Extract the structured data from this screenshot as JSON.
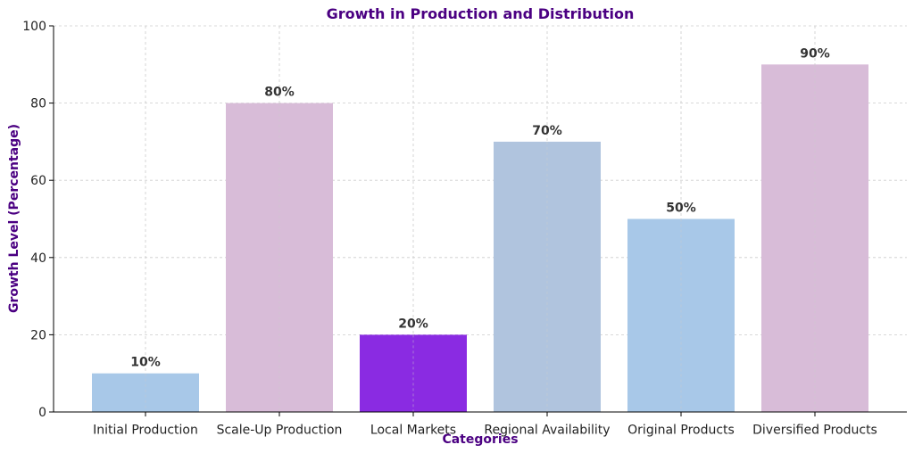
{
  "chart_data": {
    "type": "bar",
    "title": "Growth in Production and Distribution",
    "xlabel": "Categories",
    "ylabel": "Growth Level (Percentage)",
    "categories": [
      "Initial Production",
      "Scale-Up Production",
      "Local Markets",
      "Regional Availability",
      "Original Products",
      "Diversified Products"
    ],
    "values": [
      10,
      80,
      20,
      70,
      50,
      90
    ],
    "data_labels": [
      "10%",
      "80%",
      "20%",
      "70%",
      "50%",
      "90%"
    ],
    "bar_colors": [
      "#a8c8e8",
      "#d8bcd8",
      "#8a2be2",
      "#b0c4de",
      "#a8c8e8",
      "#d8bcd8"
    ],
    "ylim": [
      0,
      100
    ],
    "yticks": [
      0,
      20,
      40,
      60,
      80,
      100
    ],
    "grid": true,
    "title_color": "#4b0082",
    "label_color": "#4b0082"
  }
}
